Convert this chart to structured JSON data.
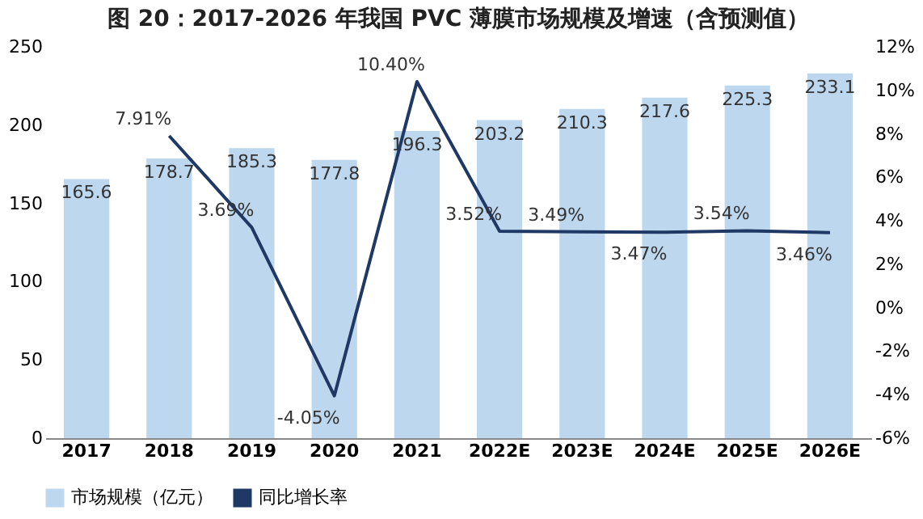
{
  "chart_data": {
    "type": "bar",
    "title": "图 20：2017-2026 年我国 PVC 薄膜市场规模及增速（含预测值）",
    "categories": [
      "2017",
      "2018",
      "2019",
      "2020",
      "2021",
      "2022E",
      "2023E",
      "2024E",
      "2025E",
      "2026E"
    ],
    "series": [
      {
        "name": "市场规模（亿元）",
        "color": "#bdd7ee",
        "values": [
          165.6,
          178.7,
          185.3,
          177.8,
          196.3,
          203.2,
          210.3,
          217.6,
          225.3,
          233.1
        ],
        "value_labels": [
          "165.6",
          "178.7",
          "185.3",
          "177.8",
          "196.3",
          "203.2",
          "210.3",
          "217.6",
          "225.3",
          "233.1"
        ]
      },
      {
        "name": "同比增长率",
        "type": "line",
        "axis": "y2",
        "color": "#1f3864",
        "values": [
          null,
          7.91,
          3.69,
          -4.05,
          10.4,
          3.52,
          3.49,
          3.47,
          3.54,
          3.46
        ],
        "value_labels": [
          null,
          "7.91%",
          "3.69%",
          "-4.05%",
          "10.40%",
          "3.52%",
          "3.49%",
          "3.47%",
          "3.54%",
          "3.46%"
        ]
      }
    ],
    "ylim": [
      0,
      250
    ],
    "yticks": [
      0,
      50,
      100,
      150,
      200,
      250
    ],
    "y2lim": [
      -6,
      12
    ],
    "y2ticks": [
      {
        "value": -6,
        "label": "-6%"
      },
      {
        "value": -4,
        "label": "-4%"
      },
      {
        "value": -2,
        "label": "-2%"
      },
      {
        "value": 0,
        "label": "0%"
      },
      {
        "value": 2,
        "label": "2%"
      },
      {
        "value": 4,
        "label": "4%"
      },
      {
        "value": 6,
        "label": "6%"
      },
      {
        "value": 8,
        "label": "8%"
      },
      {
        "value": 10,
        "label": "10%"
      },
      {
        "value": 12,
        "label": "12%"
      }
    ],
    "legend": "bottom",
    "grid": false,
    "marker": "none",
    "line_style": "solid"
  }
}
